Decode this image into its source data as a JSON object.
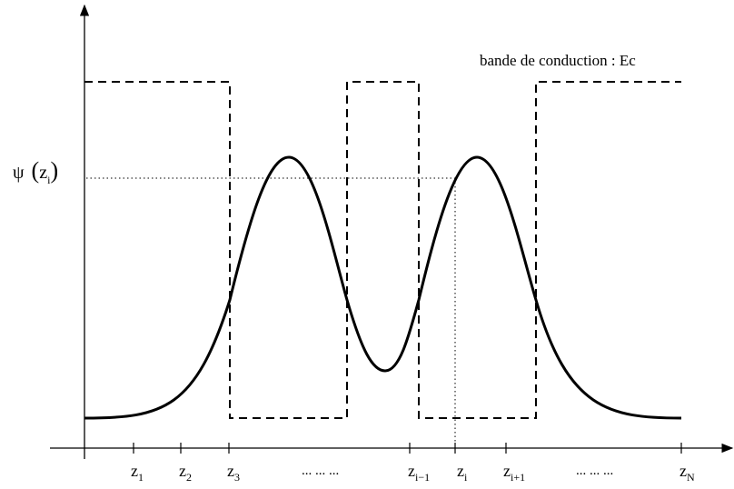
{
  "annotation": "bande de conduction : Ec",
  "psi_label": {
    "symbol": "ψ",
    "open": "(",
    "base": "z",
    "sub": "i",
    "close": ")"
  },
  "ticks": [
    {
      "base": "z",
      "sub": "1"
    },
    {
      "base": "z",
      "sub": "2"
    },
    {
      "base": "z",
      "sub": "3"
    },
    {
      "text": "... ... ..."
    },
    {
      "base": "z",
      "sub": "i−1"
    },
    {
      "base": "z",
      "sub": "i"
    },
    {
      "base": "z",
      "sub": "i+1"
    },
    {
      "text": "... ... ..."
    },
    {
      "base": "z",
      "sub": "N"
    }
  ]
}
